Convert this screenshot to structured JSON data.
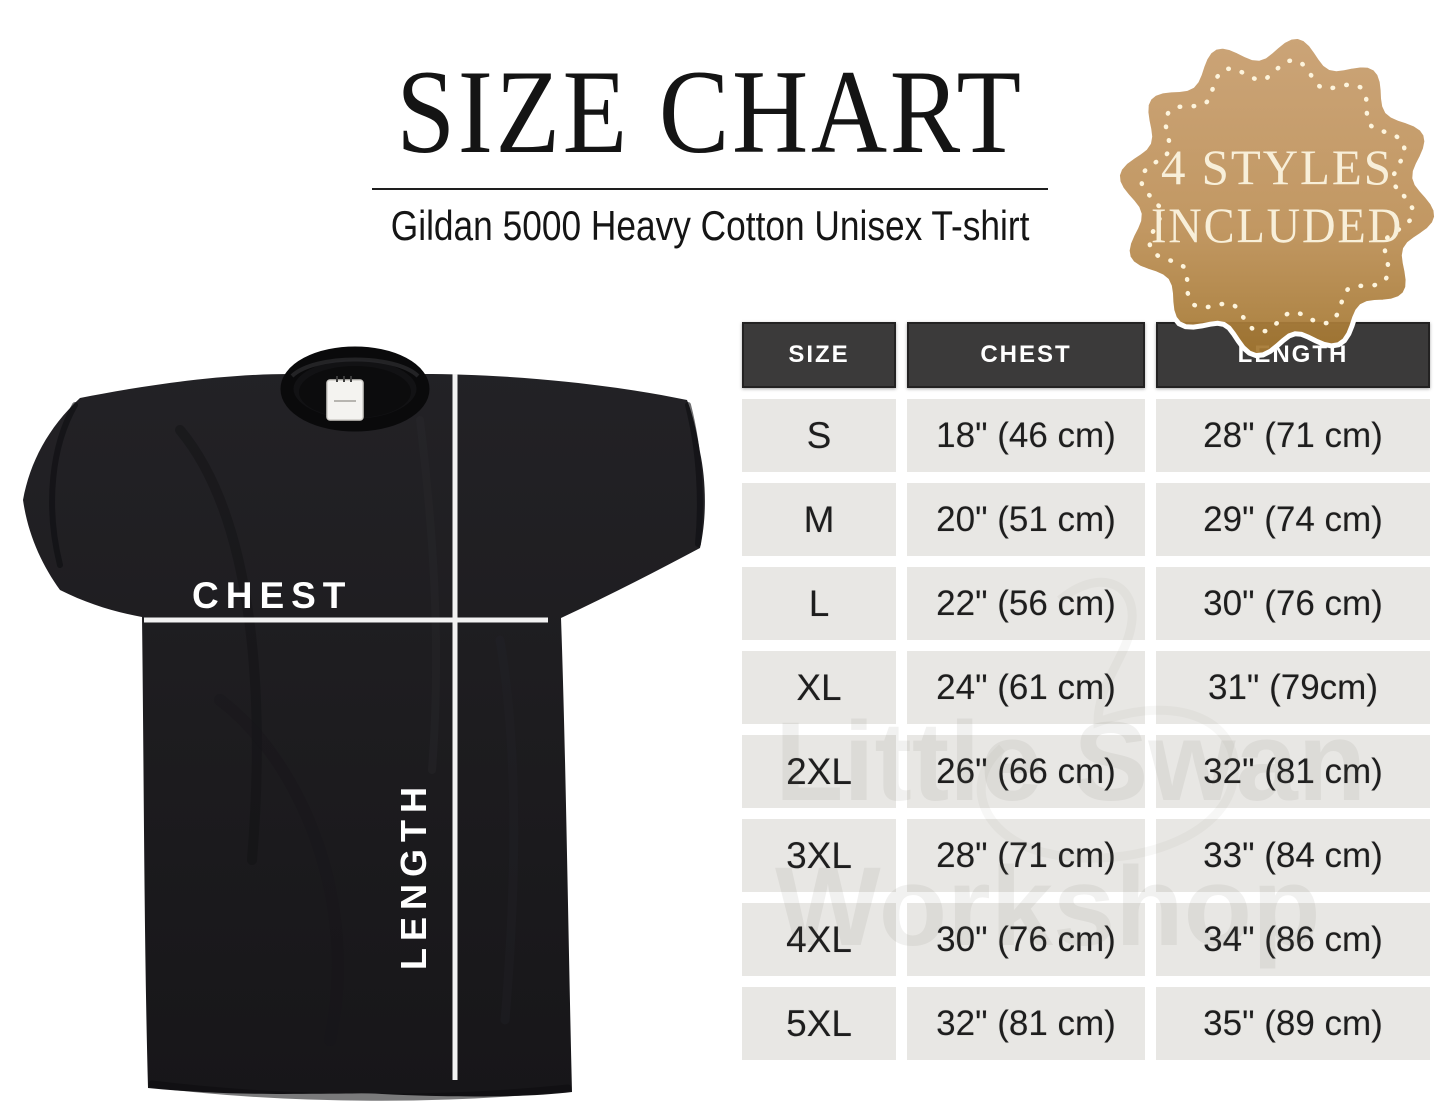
{
  "page": {
    "title": "SIZE CHART",
    "subtitle": "Gildan 5000 Heavy Cotton Unisex T-shirt"
  },
  "badge": {
    "line1": "4 STYLES",
    "line2": "INCLUDED"
  },
  "tshirt_diagram": {
    "chest_label": "CHEST",
    "length_label": "LENGTH"
  },
  "watermark": {
    "line1": "Little Swan",
    "line2": "Workshop"
  },
  "chart_data": {
    "type": "table",
    "title": "SIZE CHART",
    "subtitle": "Gildan 5000 Heavy Cotton Unisex T-shirt",
    "columns": [
      "SIZE",
      "CHEST",
      "LENGTH"
    ],
    "rows": [
      [
        "S",
        "18\" (46 cm)",
        "28\" (71 cm)"
      ],
      [
        "M",
        "20\" (51 cm)",
        "29\" (74 cm)"
      ],
      [
        "L",
        "22\" (56 cm)",
        "30\" (76 cm)"
      ],
      [
        "XL",
        "24\" (61 cm)",
        "31\" (79cm)"
      ],
      [
        "2XL",
        "26\" (66 cm)",
        "32\" (81 cm)"
      ],
      [
        "3XL",
        "28\" (71 cm)",
        "33\" (84 cm)"
      ],
      [
        "4XL",
        "30\" (76 cm)",
        "34\" (86 cm)"
      ],
      [
        "5XL",
        "32\" (81 cm)",
        "35\" (89 cm)"
      ]
    ]
  },
  "colors": {
    "badge_fill_top": "#c79d6d",
    "badge_fill_bottom": "#a67a3c",
    "badge_text": "#f8efd9",
    "header_cell_bg": "#3b3a3a",
    "header_cell_text": "#ffffff",
    "data_cell_bg": "#e8e7e4",
    "shirt_color": "#1d1c1f",
    "measure_line": "#f2f2f2"
  }
}
